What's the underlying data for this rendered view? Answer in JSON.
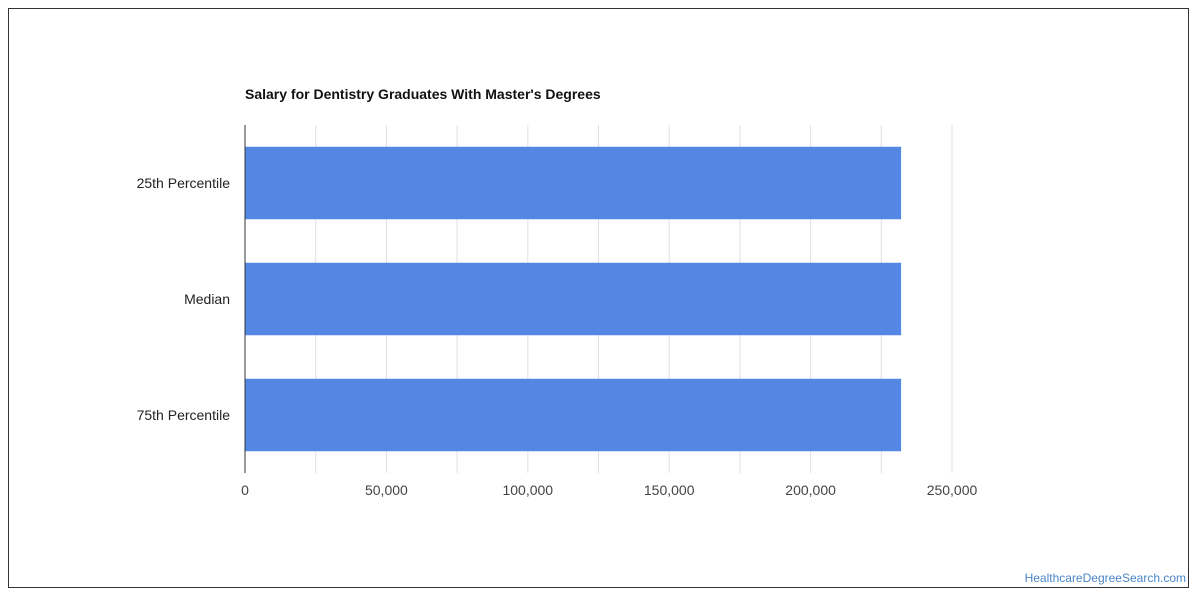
{
  "chart_data": {
    "type": "bar",
    "orientation": "horizontal",
    "title": "Salary for Dentistry Graduates With Master's Degrees",
    "categories": [
      "25th Percentile",
      "Median",
      "75th Percentile"
    ],
    "values": [
      232000,
      232000,
      232000
    ],
    "xlim": [
      0,
      250000
    ],
    "x_ticks": [
      0,
      50000,
      100000,
      150000,
      200000,
      250000
    ],
    "x_tick_labels": [
      "0",
      "50,000",
      "100,000",
      "150,000",
      "200,000",
      "250,000"
    ],
    "xlabel": "",
    "ylabel": "",
    "grid": true,
    "legend": "none",
    "bar_color": "#5387e3",
    "grid_color": "#e0e0e0",
    "axis_color": "#333333"
  },
  "footer": {
    "watermark": "HealthcareDegreeSearch.com"
  }
}
